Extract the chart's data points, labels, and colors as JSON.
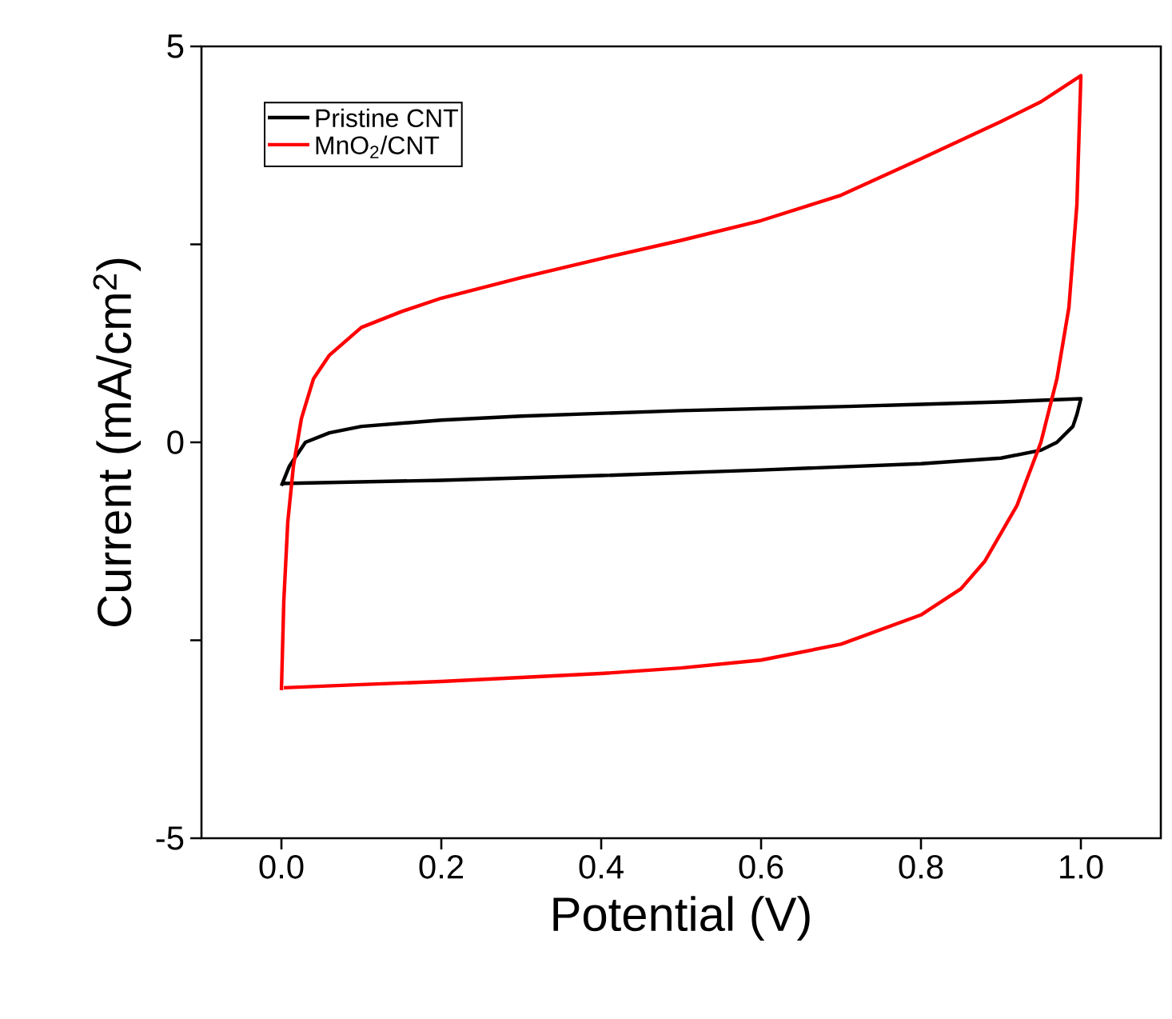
{
  "chart_data": {
    "type": "line",
    "xlabel": "Potential (V)",
    "ylabel": "Current (mA/cm$^{2}$)",
    "xlim": [
      -0.1,
      1.1
    ],
    "ylim": [
      -5,
      5
    ],
    "xticks": [
      {
        "value": 0,
        "label": "0.0"
      },
      {
        "value": 0.2,
        "label": "0.2"
      },
      {
        "value": 0.4,
        "label": "0.4"
      },
      {
        "value": 0.6,
        "label": "0.6"
      },
      {
        "value": 0.8,
        "label": "0.8"
      },
      {
        "value": 1,
        "label": "1.0"
      }
    ],
    "yticks": [
      -5,
      {
        "value": -2.5,
        "label": null
      },
      0,
      {
        "value": 2.5,
        "label": null
      },
      5
    ],
    "legend": "top left",
    "marker": "none",
    "line_style": "solid",
    "series": [
      {
        "name": "Pristine CNT",
        "color": "#000000",
        "x": [
          0.0,
          0.01,
          0.03,
          0.06,
          0.1,
          0.2,
          0.3,
          0.5,
          0.7,
          0.8,
          0.9,
          1.0,
          0.995,
          0.99,
          0.97,
          0.95,
          0.9,
          0.8,
          0.6,
          0.4,
          0.2,
          0.0
        ],
        "values": [
          -0.55,
          -0.3,
          0.0,
          0.12,
          0.2,
          0.28,
          0.33,
          0.4,
          0.45,
          0.48,
          0.51,
          0.55,
          0.35,
          0.2,
          0.0,
          -0.1,
          -0.2,
          -0.27,
          -0.35,
          -0.42,
          -0.48,
          -0.52
        ]
      },
      {
        "name": "MnO$_{2}$/CNT",
        "color": "#ff0000",
        "x": [
          0.0,
          0.003,
          0.008,
          0.015,
          0.025,
          0.04,
          0.06,
          0.1,
          0.15,
          0.2,
          0.3,
          0.4,
          0.5,
          0.6,
          0.7,
          0.8,
          0.9,
          0.95,
          1.0,
          0.995,
          0.985,
          0.97,
          0.95,
          0.92,
          0.88,
          0.85,
          0.8,
          0.7,
          0.6,
          0.5,
          0.4,
          0.3,
          0.2,
          0.1,
          0.003
        ],
        "values": [
          -3.13,
          -2.0,
          -1.0,
          -0.3,
          0.3,
          0.8,
          1.1,
          1.45,
          1.65,
          1.82,
          2.08,
          2.32,
          2.55,
          2.8,
          3.12,
          3.58,
          4.05,
          4.3,
          4.63,
          3.0,
          1.7,
          0.8,
          0.0,
          -0.8,
          -1.5,
          -1.85,
          -2.18,
          -2.55,
          -2.75,
          -2.85,
          -2.92,
          -2.97,
          -3.02,
          -3.06,
          -3.1
        ]
      }
    ]
  }
}
